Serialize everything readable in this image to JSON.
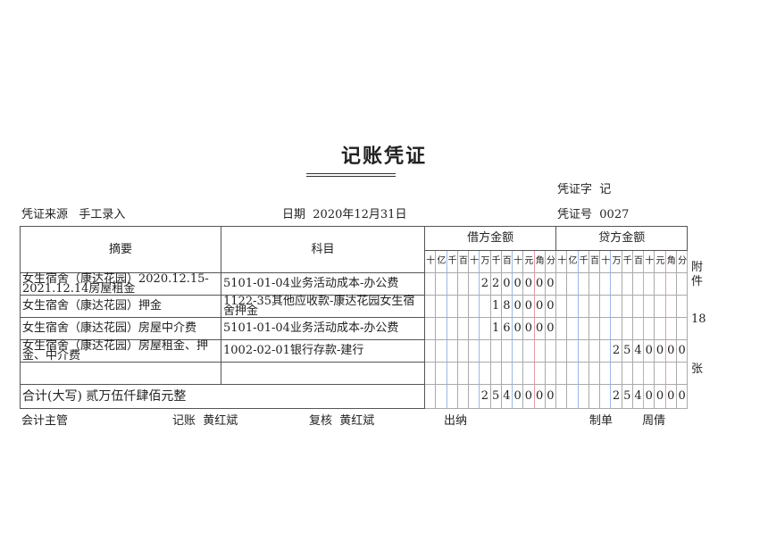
{
  "title": "记账凭证",
  "voucher_word_label": "凭证字",
  "voucher_word": "记",
  "source_label": "凭证来源",
  "source": "手工录入",
  "date_label": "日期",
  "date": "2020年12月31日",
  "voucher_no_label": "凭证号",
  "voucher_no": "0027",
  "headers": {
    "summary": "摘要",
    "subject": "科目",
    "debit": "借方金额",
    "credit": "贷方金额",
    "units": [
      "十",
      "亿",
      "千",
      "百",
      "十",
      "万",
      "千",
      "百",
      "十",
      "元",
      "角",
      "分"
    ]
  },
  "rows": [
    {
      "summary": "女生宿舍（康达花园）2020.12.15-2021.12.14房屋租金",
      "summary_small": true,
      "subject": "5101-01-04业务活动成本-办公费",
      "subject_small": false,
      "debit": "2200000",
      "credit": ""
    },
    {
      "summary": "女生宿舍（康达花园）押金",
      "summary_small": false,
      "subject": "1122-35其他应收款-康达花园女生宿舍押金",
      "subject_small": true,
      "debit": "180000",
      "credit": ""
    },
    {
      "summary": "女生宿舍（康达花园）房屋中介费",
      "summary_small": false,
      "subject": "5101-01-04业务活动成本-办公费",
      "subject_small": false,
      "debit": "160000",
      "credit": ""
    },
    {
      "summary": "女生宿舍（康达花园）房屋租金、押金、中介费",
      "summary_small": true,
      "subject": "1002-02-01银行存款-建行",
      "subject_small": false,
      "debit": "",
      "credit": "2540000"
    },
    {
      "summary": "",
      "subject": "",
      "debit": "",
      "credit": ""
    }
  ],
  "total": {
    "label": "合计(大写) 贰万伍仟肆佰元整",
    "debit": "2540000",
    "credit": "2540000"
  },
  "attachments": {
    "label_top": "附件",
    "count": "18",
    "label_bottom": "张"
  },
  "signatures": {
    "chief_label": "会计主管",
    "chief": "",
    "bookkeeper_label": "记账",
    "bookkeeper": "黄红斌",
    "reviewer_label": "复核",
    "reviewer": "黄红斌",
    "cashier_label": "出纳",
    "cashier": "",
    "preparer_label": "制单",
    "preparer": "周倩"
  }
}
